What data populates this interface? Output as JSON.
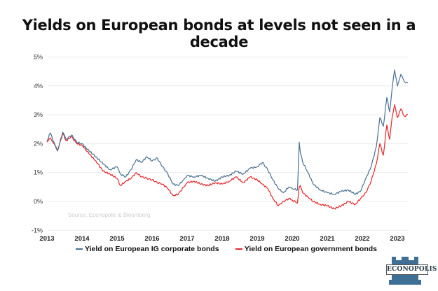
{
  "chart_data": {
    "type": "line",
    "title": "Yields on European bonds at levels not seen in a decade",
    "xlabel": "",
    "ylabel": "",
    "ylim": [
      -1,
      5
    ],
    "xlim": [
      2013,
      2023.5
    ],
    "yticks": [
      "-1%",
      "0%",
      "1%",
      "2%",
      "3%",
      "4%",
      "5%"
    ],
    "ytick_values": [
      -1,
      0,
      1,
      2,
      3,
      4,
      5
    ],
    "xticks": [
      "2013",
      "2014",
      "2015",
      "2016",
      "2017",
      "2018",
      "2019",
      "2020",
      "2021",
      "2022",
      "2023"
    ],
    "grid": true,
    "legend_position": "bottom",
    "annotation": "Source: Econopolis & Bloomberg",
    "x": [
      2013.0,
      2013.1,
      2013.2,
      2013.3,
      2013.45,
      2013.55,
      2013.7,
      2013.85,
      2014.0,
      2014.2,
      2014.4,
      2014.6,
      2014.8,
      2015.0,
      2015.1,
      2015.25,
      2015.4,
      2015.55,
      2015.7,
      2015.85,
      2016.0,
      2016.15,
      2016.3,
      2016.45,
      2016.6,
      2016.75,
      2016.9,
      2017.0,
      2017.2,
      2017.4,
      2017.6,
      2017.8,
      2018.0,
      2018.2,
      2018.4,
      2018.6,
      2018.8,
      2019.0,
      2019.15,
      2019.3,
      2019.45,
      2019.6,
      2019.75,
      2019.9,
      2020.0,
      2020.15,
      2020.2,
      2020.23,
      2020.3,
      2020.45,
      2020.6,
      2020.8,
      2021.0,
      2021.2,
      2021.4,
      2021.6,
      2021.8,
      2021.95,
      2022.1,
      2022.25,
      2022.4,
      2022.5,
      2022.6,
      2022.7,
      2022.78,
      2022.85,
      2022.92,
      2023.0,
      2023.1,
      2023.2,
      2023.3
    ],
    "series": [
      {
        "name": "Yield on European IG corporate bonds",
        "color": "#4a7191",
        "values": [
          2.1,
          2.37,
          2.05,
          1.75,
          2.4,
          2.15,
          2.3,
          2.05,
          2.0,
          1.75,
          1.55,
          1.3,
          1.1,
          1.2,
          0.95,
          0.85,
          1.1,
          1.45,
          1.35,
          1.55,
          1.4,
          1.5,
          1.2,
          0.95,
          0.6,
          0.55,
          0.75,
          0.9,
          0.85,
          0.9,
          0.8,
          0.7,
          0.85,
          0.9,
          1.05,
          0.95,
          1.15,
          1.2,
          1.35,
          1.1,
          0.75,
          0.45,
          0.3,
          0.5,
          0.45,
          0.4,
          2.05,
          1.7,
          1.35,
          1.0,
          0.6,
          0.4,
          0.3,
          0.25,
          0.35,
          0.4,
          0.25,
          0.35,
          0.8,
          1.2,
          1.9,
          2.9,
          2.6,
          3.6,
          3.1,
          3.9,
          4.55,
          4.0,
          4.4,
          4.15,
          4.1
        ]
      },
      {
        "name": "Yield on European government bonds",
        "color": "#e8262a",
        "values": [
          2.05,
          2.2,
          2.0,
          1.75,
          2.35,
          2.1,
          2.25,
          2.0,
          1.95,
          1.65,
          1.4,
          1.05,
          0.95,
          0.8,
          0.55,
          0.7,
          0.8,
          1.0,
          0.85,
          0.8,
          0.75,
          0.65,
          0.6,
          0.45,
          0.2,
          0.25,
          0.5,
          0.65,
          0.7,
          0.6,
          0.55,
          0.65,
          0.6,
          0.7,
          0.85,
          0.65,
          0.85,
          0.75,
          0.6,
          0.45,
          0.1,
          -0.15,
          0.0,
          0.1,
          0.05,
          -0.05,
          0.5,
          0.55,
          0.3,
          0.15,
          0.0,
          -0.1,
          -0.15,
          -0.25,
          -0.15,
          0.0,
          -0.1,
          0.1,
          0.3,
          0.7,
          1.3,
          2.0,
          1.6,
          2.65,
          2.15,
          2.9,
          3.35,
          2.9,
          3.2,
          2.95,
          3.0
        ]
      }
    ]
  },
  "legend": {
    "items": [
      {
        "label": "Yield on European IG corporate bonds",
        "color": "#4a7191"
      },
      {
        "label": "Yield on European government bonds",
        "color": "#e8262a"
      }
    ]
  },
  "logo": {
    "text": "ECONOPOLIS"
  }
}
